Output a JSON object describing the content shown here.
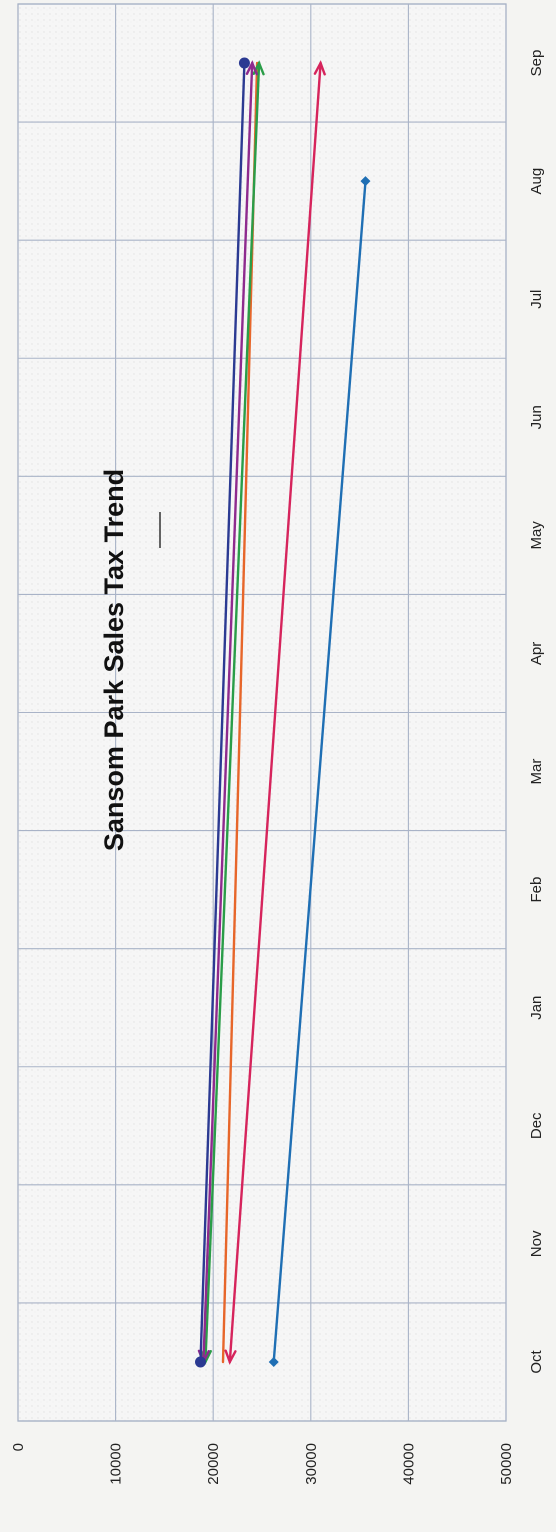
{
  "chart_data": {
    "type": "line",
    "title": "Sansom Park Sales Tax Trend",
    "xlabel": "",
    "ylabel": "",
    "orientation": "rotated-90-clockwise",
    "categories": [
      "Oct",
      "Nov",
      "Dec",
      "Jan",
      "Feb",
      "Mar",
      "Apr",
      "May",
      "Jun",
      "Jul",
      "Aug",
      "Sep"
    ],
    "ylim": [
      0,
      50000
    ],
    "y_ticks": [
      0,
      10000,
      20000,
      30000,
      40000,
      50000
    ],
    "grid": true,
    "legend": "none",
    "series": [
      {
        "color": "#1f6fb4",
        "marker": "diamond",
        "arrow": false,
        "points": [
          {
            "x": "Oct",
            "y": 26200
          },
          {
            "x": "Aug",
            "y": 35600
          }
        ]
      },
      {
        "color": "#d6245c",
        "marker": "none",
        "arrow": true,
        "points": [
          {
            "x": "Oct",
            "y": 21700
          },
          {
            "x": "Sep",
            "y": 31000
          }
        ]
      },
      {
        "color": "#e7662a",
        "marker": "none",
        "arrow": false,
        "points": [
          {
            "x": "Oct",
            "y": 21000
          },
          {
            "x": "Sep",
            "y": 24500
          }
        ]
      },
      {
        "color": "#2a9d48",
        "marker": "none",
        "arrow": true,
        "points": [
          {
            "x": "Oct",
            "y": 19200
          },
          {
            "x": "Sep",
            "y": 24700
          }
        ]
      },
      {
        "color": "#8e2a8e",
        "marker": "none",
        "arrow": true,
        "points": [
          {
            "x": "Oct",
            "y": 19000
          },
          {
            "x": "Sep",
            "y": 24000
          }
        ]
      },
      {
        "color": "#2b3a92",
        "marker": "circle",
        "arrow": false,
        "points": [
          {
            "x": "Oct",
            "y": 18700
          },
          {
            "x": "Sep",
            "y": 23200
          }
        ]
      }
    ]
  }
}
